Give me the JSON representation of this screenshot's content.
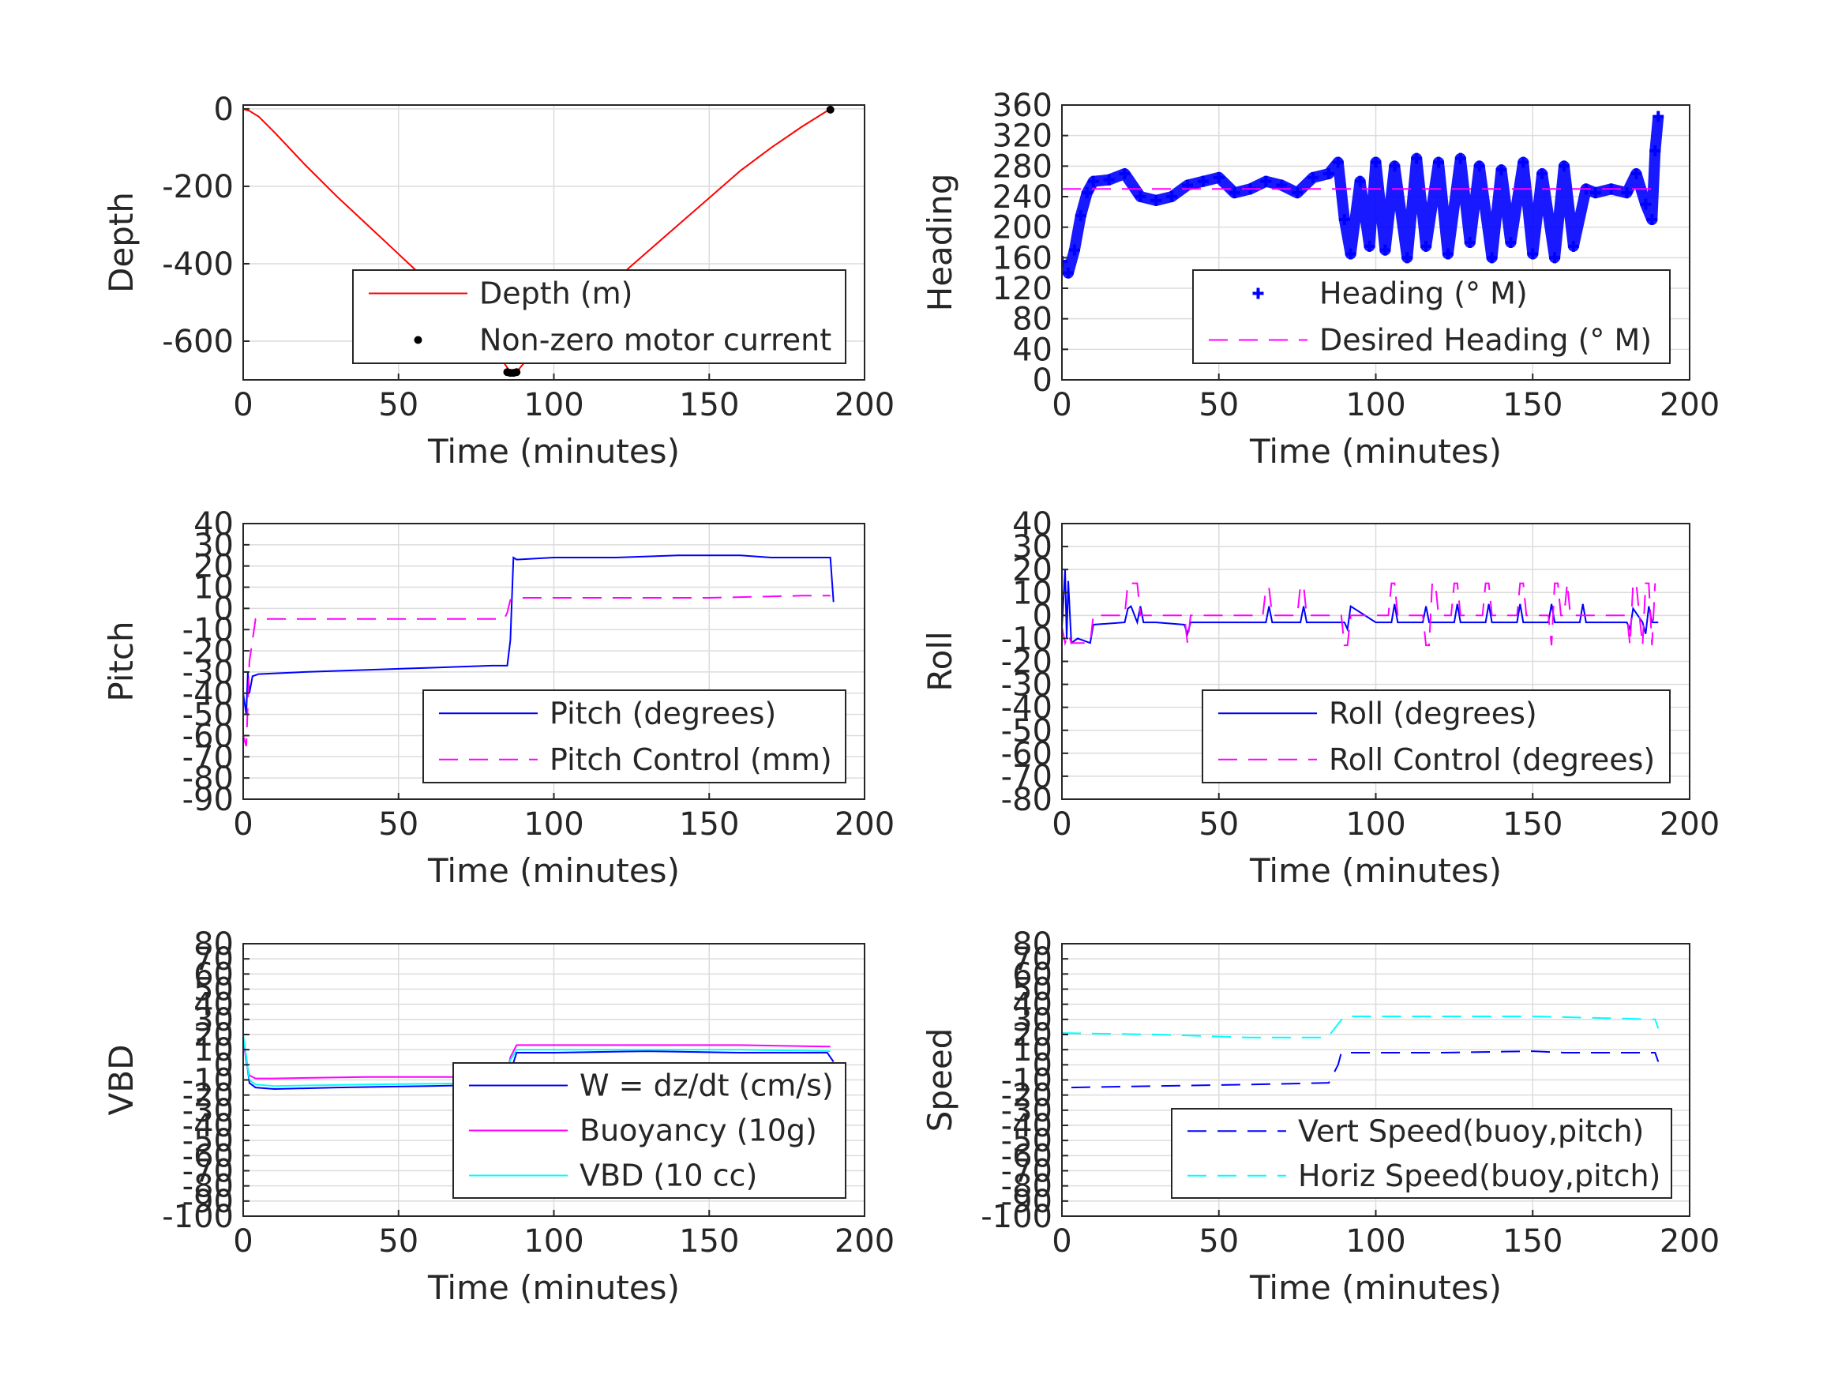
{
  "chart_data": [
    {
      "id": "depth",
      "type": "line",
      "xlabel": "Time (minutes)",
      "ylabel": "Depth",
      "xlim": [
        0,
        200
      ],
      "ylim": [
        -700,
        10
      ],
      "xticks": [
        0,
        50,
        100,
        150,
        200
      ],
      "yticks": [
        0,
        -200,
        -400,
        -600
      ],
      "legend_pos": "lower-right",
      "series": [
        {
          "name": "Depth (m)",
          "color": "#ff0000",
          "style": "solid",
          "x": [
            0,
            2,
            5,
            10,
            20,
            30,
            40,
            50,
            60,
            70,
            80,
            86,
            88,
            90,
            100,
            110,
            120,
            130,
            140,
            150,
            160,
            170,
            180,
            189
          ],
          "y": [
            0,
            -5,
            -20,
            -60,
            -145,
            -225,
            -300,
            -375,
            -450,
            -530,
            -610,
            -680,
            -680,
            -660,
            -590,
            -515,
            -440,
            -370,
            -300,
            -230,
            -160,
            -100,
            -45,
            0
          ]
        },
        {
          "name": "Non-zero motor current",
          "color": "#000000",
          "style": "dot",
          "x": [
            85,
            86,
            87,
            88,
            189
          ],
          "y": [
            -680,
            -682,
            -682,
            -680,
            -2
          ]
        }
      ]
    },
    {
      "id": "heading",
      "type": "line",
      "xlabel": "Time (minutes)",
      "ylabel": "Heading",
      "xlim": [
        0,
        200
      ],
      "ylim": [
        0,
        360
      ],
      "xticks": [
        0,
        50,
        100,
        150,
        200
      ],
      "yticks": [
        0,
        40,
        80,
        120,
        160,
        200,
        240,
        280,
        320,
        360
      ],
      "legend_pos": "lower-right",
      "series": [
        {
          "name": "Heading (° M)",
          "color": "#0000ff",
          "style": "plus",
          "x": [
            0,
            2,
            4,
            6,
            8,
            10,
            15,
            20,
            25,
            30,
            35,
            40,
            45,
            50,
            55,
            60,
            65,
            70,
            75,
            80,
            85,
            88,
            90,
            92,
            95,
            98,
            100,
            103,
            106,
            110,
            113,
            116,
            120,
            123,
            127,
            130,
            133,
            137,
            140,
            143,
            147,
            150,
            153,
            157,
            160,
            163,
            167,
            170,
            175,
            180,
            183,
            186,
            188,
            189,
            190
          ],
          "y": [
            155,
            140,
            170,
            215,
            245,
            260,
            262,
            270,
            240,
            235,
            240,
            255,
            260,
            265,
            245,
            250,
            260,
            255,
            245,
            265,
            270,
            285,
            210,
            165,
            260,
            175,
            285,
            170,
            280,
            160,
            290,
            175,
            285,
            165,
            290,
            180,
            280,
            160,
            275,
            180,
            285,
            165,
            270,
            160,
            280,
            175,
            250,
            245,
            250,
            245,
            270,
            230,
            210,
            300,
            345
          ]
        },
        {
          "name": "Desired Heading (° M)",
          "color": "#ff00ff",
          "style": "dash",
          "x": [
            0,
            190
          ],
          "y": [
            250,
            250
          ]
        }
      ]
    },
    {
      "id": "pitch",
      "type": "line",
      "xlabel": "Time (minutes)",
      "ylabel": "Pitch",
      "xlim": [
        0,
        200
      ],
      "ylim": [
        -90,
        40
      ],
      "xticks": [
        0,
        50,
        100,
        150,
        200
      ],
      "yticks": [
        40,
        30,
        20,
        10,
        0,
        -10,
        -20,
        -30,
        -40,
        -50,
        -60,
        -70,
        -80,
        -90
      ],
      "legend_pos": "lower-right",
      "series": [
        {
          "name": "Pitch (degrees)",
          "color": "#0000ff",
          "style": "solid",
          "x": [
            0,
            1,
            1.5,
            2,
            3,
            5,
            20,
            40,
            60,
            80,
            85,
            86,
            87,
            88,
            100,
            120,
            140,
            160,
            170,
            180,
            189,
            190
          ],
          "y": [
            -40,
            -50,
            -30,
            -40,
            -32,
            -31,
            -30,
            -29,
            -28,
            -27,
            -27,
            -15,
            24,
            23,
            24,
            24,
            25,
            25,
            24,
            24,
            24,
            3
          ]
        },
        {
          "name": "Pitch Control (mm)",
          "color": "#ff00ff",
          "style": "dash",
          "x": [
            0,
            1,
            2,
            3,
            4,
            10,
            40,
            70,
            84,
            85,
            86,
            88,
            90,
            120,
            150,
            180,
            189
          ],
          "y": [
            -60,
            -65,
            -25,
            -15,
            -5,
            -5,
            -5,
            -5,
            -5,
            -2,
            4,
            5,
            5,
            5,
            5,
            6,
            6
          ]
        }
      ]
    },
    {
      "id": "roll",
      "type": "line",
      "xlabel": "Time (minutes)",
      "ylabel": "Roll",
      "xlim": [
        0,
        200
      ],
      "ylim": [
        -80,
        40
      ],
      "xticks": [
        0,
        50,
        100,
        150,
        200
      ],
      "yticks": [
        40,
        30,
        20,
        10,
        0,
        -10,
        -20,
        -30,
        -40,
        -50,
        -60,
        -70,
        -80
      ],
      "legend_pos": "lower-right",
      "series": [
        {
          "name": "Roll (degrees)",
          "color": "#0000ff",
          "style": "solid",
          "x": [
            0,
            1,
            1.5,
            2,
            3,
            5,
            9,
            10,
            20,
            21,
            22,
            24,
            25,
            26,
            30,
            39,
            40,
            41,
            50,
            65,
            66,
            67,
            70,
            76,
            77,
            78,
            85,
            90,
            91,
            92,
            100,
            105,
            106,
            107,
            110,
            115,
            116,
            117,
            120,
            125,
            126,
            127,
            130,
            135,
            136,
            137,
            140,
            145,
            146,
            147,
            150,
            155,
            156,
            157,
            160,
            165,
            166,
            167,
            170,
            180,
            181,
            182,
            185,
            186,
            187,
            188,
            190
          ],
          "y": [
            -5,
            20,
            -10,
            15,
            -12,
            -10,
            -12,
            -4,
            -3,
            3,
            4,
            -3,
            4,
            -3,
            -3,
            -4,
            -8,
            -3,
            -3,
            -3,
            4,
            -3,
            -3,
            -3,
            4,
            -3,
            -3,
            -3,
            -6,
            4,
            -3,
            -3,
            5,
            -3,
            -3,
            -3,
            4,
            -3,
            -3,
            -3,
            5,
            -3,
            -3,
            -3,
            5,
            -3,
            -3,
            -3,
            5,
            -3,
            -3,
            -3,
            5,
            -3,
            -3,
            -3,
            5,
            -3,
            -3,
            -3,
            -6,
            3,
            -3,
            -8,
            4,
            -3,
            -3
          ]
        },
        {
          "name": "Roll Control (degrees)",
          "color": "#ff00ff",
          "style": "dash",
          "x": [
            0,
            1,
            2,
            3,
            9,
            10,
            20,
            21,
            24,
            25,
            27,
            30,
            39,
            40,
            41,
            50,
            64,
            65,
            66,
            67,
            75,
            76,
            77,
            78,
            89,
            90,
            91,
            92,
            100,
            104,
            105,
            106,
            107,
            115,
            116,
            117,
            118,
            119,
            120,
            121,
            124,
            125,
            126,
            127,
            134,
            135,
            136,
            137,
            145,
            146,
            147,
            148,
            155,
            156,
            157,
            158,
            159,
            160,
            161,
            162,
            180,
            181,
            182,
            183,
            184,
            185,
            186,
            187,
            188,
            189
          ],
          "y": [
            -5,
            -12,
            -8,
            -12,
            -12,
            0,
            0,
            14,
            14,
            0,
            0,
            0,
            0,
            -12,
            0,
            0,
            0,
            12,
            12,
            0,
            0,
            13,
            13,
            0,
            0,
            -13,
            -13,
            0,
            0,
            0,
            14,
            14,
            0,
            0,
            -13,
            -13,
            14,
            14,
            0,
            0,
            0,
            14,
            14,
            0,
            0,
            14,
            14,
            0,
            0,
            14,
            14,
            0,
            0,
            -13,
            14,
            14,
            0,
            0,
            14,
            0,
            0,
            -13,
            14,
            14,
            0,
            -13,
            14,
            14,
            -13,
            14
          ]
        }
      ]
    },
    {
      "id": "vbd",
      "type": "line",
      "xlabel": "Time (minutes)",
      "ylabel": "VBD",
      "xlim": [
        0,
        200
      ],
      "ylim": [
        -100,
        80
      ],
      "xticks": [
        0,
        50,
        100,
        150,
        200
      ],
      "yticks": [
        80,
        70,
        60,
        50,
        40,
        30,
        20,
        10,
        0,
        -10,
        -20,
        -30,
        -40,
        -50,
        -60,
        -70,
        -80,
        -90,
        -100
      ],
      "legend_pos": "lower-right",
      "series": [
        {
          "name": "W = dz/dt (cm/s)",
          "color": "#0000ff",
          "style": "solid",
          "x": [
            0,
            1,
            2,
            4,
            10,
            30,
            60,
            84,
            85,
            86,
            88,
            100,
            130,
            160,
            188,
            189,
            190
          ],
          "y": [
            18,
            5,
            -12,
            -15,
            -16,
            -15,
            -14,
            -13,
            -12,
            -5,
            8,
            8,
            9,
            8,
            8,
            5,
            2
          ]
        },
        {
          "name": "Buoyancy (10g)",
          "color": "#ff00ff",
          "style": "solid",
          "x": [
            0,
            1,
            2,
            4,
            10,
            40,
            84,
            85,
            86,
            88,
            120,
            160,
            189
          ],
          "y": [
            18,
            2,
            -7,
            -9,
            -9,
            -8,
            -8,
            -6,
            5,
            13,
            13,
            13,
            12
          ]
        },
        {
          "name": "VBD (10 cc)",
          "color": "#00ffff",
          "style": "solid",
          "x": [
            0,
            1,
            2,
            4,
            10,
            40,
            84,
            85,
            86,
            88,
            120,
            160,
            189
          ],
          "y": [
            20,
            5,
            -10,
            -13,
            -14,
            -13,
            -12,
            -8,
            3,
            10,
            10,
            10,
            9
          ]
        }
      ]
    },
    {
      "id": "speed",
      "type": "line",
      "xlabel": "Time (minutes)",
      "ylabel": "Speed",
      "xlim": [
        0,
        200
      ],
      "ylim": [
        -100,
        80
      ],
      "xticks": [
        0,
        50,
        100,
        150,
        200
      ],
      "yticks": [
        80,
        70,
        60,
        50,
        40,
        30,
        20,
        10,
        0,
        -10,
        -20,
        -30,
        -40,
        -50,
        -60,
        -70,
        -80,
        -90,
        -100
      ],
      "legend_pos": "lower-right",
      "series": [
        {
          "name": "Vert Speed(buoy,pitch)",
          "color": "#0000ff",
          "style": "dash",
          "x": [
            3,
            30,
            60,
            84,
            85,
            88,
            89,
            120,
            150,
            160,
            189,
            190
          ],
          "y": [
            -15,
            -14,
            -13,
            -12,
            -12,
            0,
            8,
            8,
            9,
            8,
            8,
            2
          ]
        },
        {
          "name": "Horiz Speed(buoy,pitch)",
          "color": "#00ffff",
          "style": "dash",
          "x": [
            0,
            30,
            60,
            84,
            85,
            88,
            90,
            120,
            150,
            170,
            189,
            190
          ],
          "y": [
            21,
            20,
            18,
            18,
            19,
            27,
            32,
            32,
            32,
            31,
            30,
            24
          ]
        }
      ]
    }
  ]
}
